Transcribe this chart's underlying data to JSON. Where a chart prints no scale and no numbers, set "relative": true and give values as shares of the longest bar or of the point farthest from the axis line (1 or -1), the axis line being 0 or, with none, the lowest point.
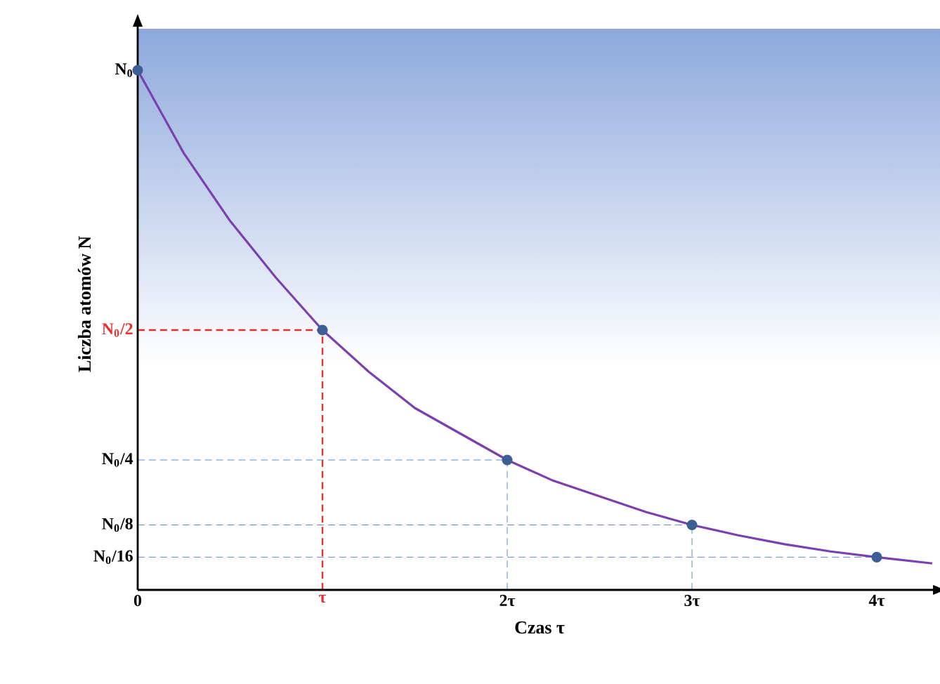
{
  "chart_data": {
    "type": "line",
    "xlabel": "Czas τ",
    "ylabel": "Liczba atomów N",
    "relative": true,
    "xlim": [
      0,
      4.35
    ],
    "xticks": [
      0,
      {
        "value": 1,
        "label": "τ"
      },
      {
        "value": 2,
        "label": "2τ"
      },
      {
        "value": 3,
        "label": "3τ"
      },
      {
        "value": 4,
        "label": "4τ"
      }
    ],
    "annotations": [
      {
        "text": "N$_{0}$",
        "x": 0,
        "y": 1
      }
    ],
    "series": [
      {
        "color": "#7b3fb0",
        "marker": "none",
        "line_style": "solid",
        "x": [
          0,
          0.25,
          0.5,
          0.75,
          1,
          1.25,
          1.5,
          1.75,
          2,
          2.25,
          2.5,
          2.75,
          3,
          3.25,
          3.5,
          3.75,
          4,
          4.3
        ],
        "values": [
          1,
          0.84,
          0.71,
          0.6,
          0.5,
          0.42,
          0.35,
          0.3,
          0.25,
          0.21,
          0.18,
          0.15,
          0.125,
          0.105,
          0.088,
          0.074,
          0.063,
          0.051
        ]
      },
      {
        "type": "scatter",
        "color": "#3c5f96",
        "marker": "circle",
        "x": [
          0,
          1,
          2,
          3,
          4
        ],
        "values": [
          1,
          0.5,
          0.25,
          0.125,
          0.063
        ]
      }
    ],
    "bands": [
      {
        "axis": "y",
        "from": 0.43,
        "to": 1.08,
        "color": "#8ca8dc"
      }
    ],
    "ref_lines": [
      {
        "axis": "y",
        "value": 0.5,
        "label": "N$_{0}$/2",
        "color": "#e8312f",
        "line_style": "dashed"
      },
      {
        "axis": "x",
        "value": 1,
        "color": "#e8312f",
        "line_style": "dashed"
      },
      {
        "axis": "y",
        "value": 0.25,
        "label": "N$_{0}$/4",
        "color": "#5b8ccc",
        "line_style": "dashed"
      },
      {
        "axis": "y",
        "value": 0.125,
        "label": "N$_{0}$/8",
        "color": "#5b8ccc",
        "line_style": "dashed"
      },
      {
        "axis": "y",
        "value": 0.063,
        "label": "N$_{0}$/16",
        "color": "#5b8ccc",
        "line_style": "dashed"
      },
      {
        "axis": "x",
        "value": 2,
        "color": "#5b8ccc",
        "line_style": "dashed"
      },
      {
        "axis": "x",
        "value": 3,
        "color": "#5b8ccc",
        "line_style": "dashed"
      }
    ]
  }
}
